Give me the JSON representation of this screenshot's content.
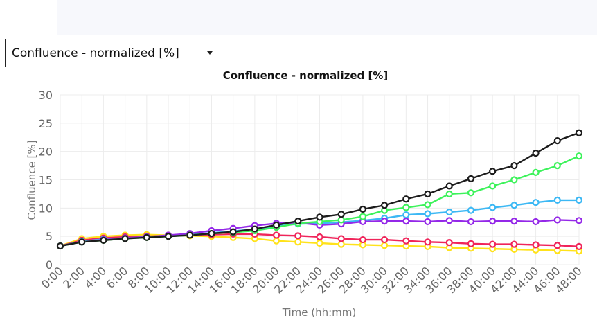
{
  "selector": {
    "selected": "Confluence - normalized [%]"
  },
  "chart_data": {
    "type": "line",
    "title": "Confluence - normalized [%]",
    "xlabel": "Time (hh:mm)",
    "ylabel": "Confluence [%]",
    "ylim": [
      0,
      30
    ],
    "yticks": [
      0,
      5,
      10,
      15,
      20,
      25,
      30
    ],
    "grid": true,
    "legend": "none",
    "categories": [
      "0:00",
      "2:00",
      "4:00",
      "6:00",
      "8:00",
      "10:00",
      "12:00",
      "14:00",
      "16:00",
      "18:00",
      "20:00",
      "22:00",
      "24:00",
      "26:00",
      "28:00",
      "30:00",
      "32:00",
      "34:00",
      "36:00",
      "38:00",
      "40:00",
      "42:00",
      "44:00",
      "46:00",
      "48:00"
    ],
    "series": [
      {
        "color": "#ffe21a",
        "values": [
          3.3,
          4.6,
          5.0,
          5.2,
          5.3,
          5.2,
          5.1,
          5.0,
          4.8,
          4.6,
          4.2,
          4.0,
          3.8,
          3.6,
          3.5,
          3.4,
          3.3,
          3.2,
          3.0,
          2.9,
          2.8,
          2.7,
          2.6,
          2.5,
          2.4
        ]
      },
      {
        "color": "#f0245a",
        "values": [
          3.3,
          4.3,
          4.7,
          4.9,
          5.0,
          5.1,
          5.2,
          5.3,
          5.4,
          5.4,
          5.2,
          5.1,
          4.9,
          4.6,
          4.4,
          4.4,
          4.2,
          4.0,
          3.9,
          3.7,
          3.6,
          3.6,
          3.5,
          3.4,
          3.2
        ]
      },
      {
        "color": "#3cb8f4",
        "values": [
          3.3,
          4.1,
          4.5,
          4.7,
          4.9,
          5.1,
          5.3,
          5.6,
          5.9,
          6.3,
          6.8,
          7.2,
          7.3,
          7.5,
          7.8,
          8.2,
          8.8,
          9.0,
          9.3,
          9.6,
          10.1,
          10.5,
          11.0,
          11.4,
          11.4
        ]
      },
      {
        "color": "#9428e8",
        "values": [
          3.3,
          4.0,
          4.4,
          4.7,
          4.9,
          5.2,
          5.5,
          6.0,
          6.4,
          6.9,
          7.3,
          7.4,
          7.0,
          7.2,
          7.6,
          7.7,
          7.7,
          7.6,
          7.8,
          7.6,
          7.7,
          7.7,
          7.6,
          7.9,
          7.8
        ]
      },
      {
        "color": "#3cf25a",
        "values": [
          3.3,
          4.0,
          4.3,
          4.6,
          4.8,
          5.0,
          5.2,
          5.5,
          5.7,
          6.0,
          6.6,
          7.3,
          7.6,
          7.9,
          8.5,
          9.6,
          10.1,
          10.6,
          12.5,
          12.7,
          13.9,
          15.0,
          16.3,
          17.5,
          19.2
        ]
      },
      {
        "color": "#1c1c1c",
        "values": [
          3.3,
          4.0,
          4.3,
          4.6,
          4.8,
          5.0,
          5.2,
          5.5,
          5.8,
          6.3,
          7.0,
          7.7,
          8.4,
          8.9,
          9.8,
          10.5,
          11.6,
          12.5,
          13.9,
          15.2,
          16.5,
          17.5,
          19.7,
          21.9,
          23.3
        ]
      }
    ]
  }
}
